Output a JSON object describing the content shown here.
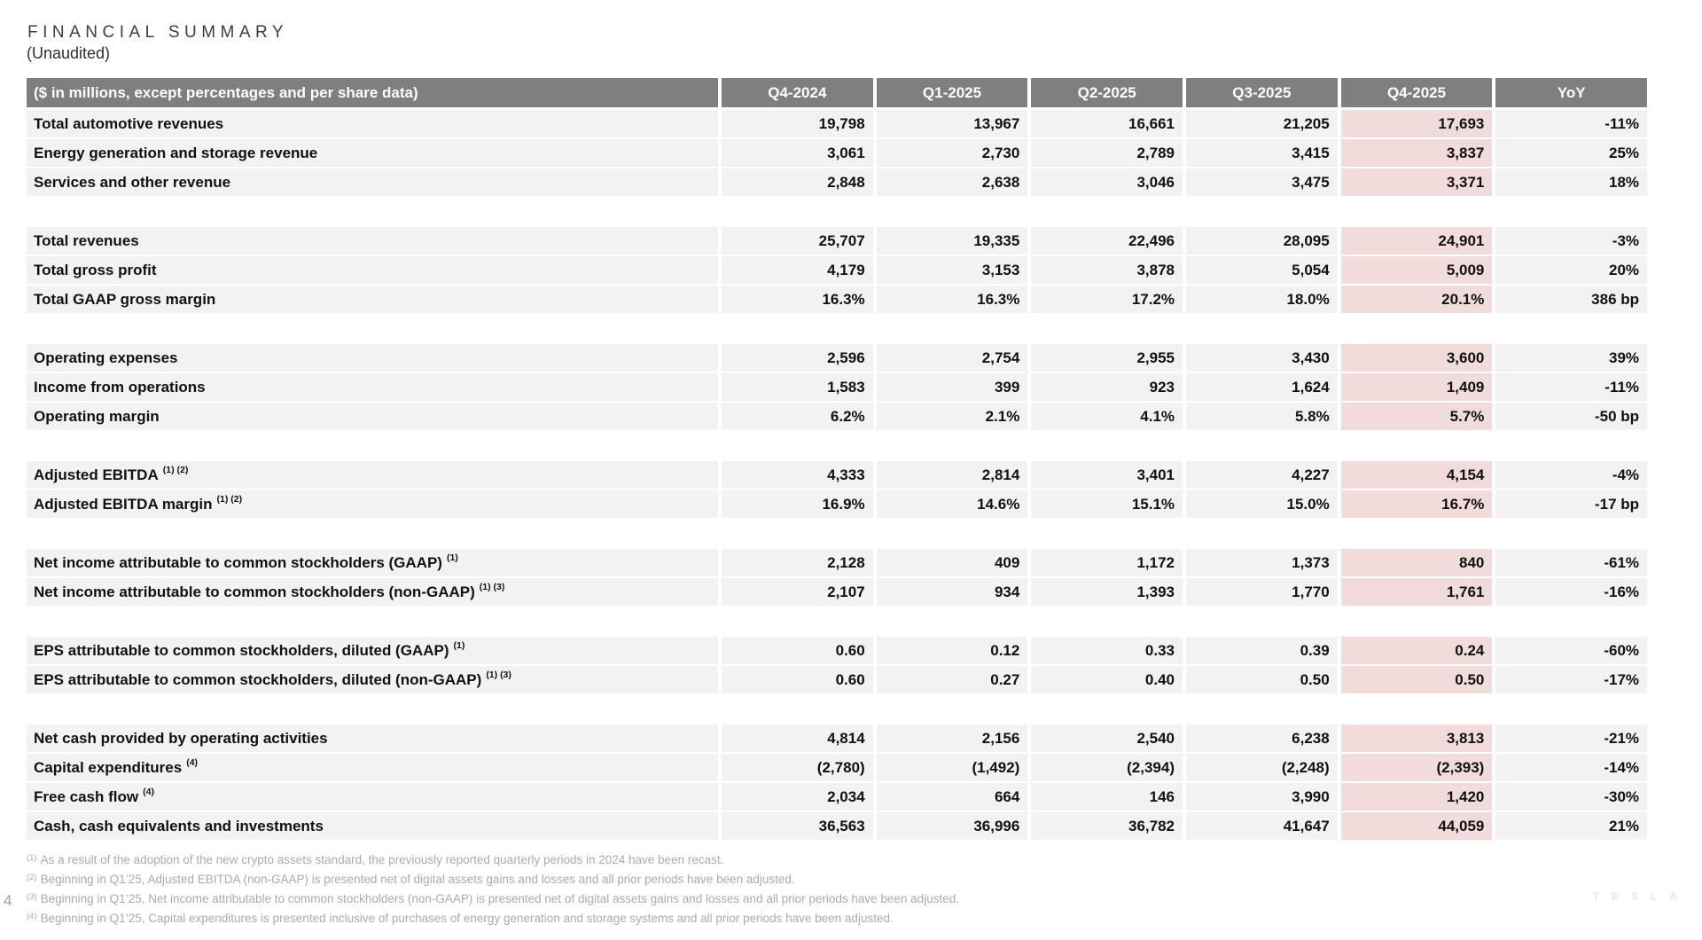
{
  "title": {
    "heading": "FINANCIAL SUMMARY",
    "subheading": "(Unaudited)"
  },
  "table": {
    "corner_label": "($ in millions, except percentages and per share data)",
    "columns": [
      "Q4-2024",
      "Q1-2025",
      "Q2-2025",
      "Q3-2025",
      "Q4-2025",
      "YoY"
    ],
    "highlight_column": "Q4-2025",
    "highlight_index": 4,
    "colors": {
      "header_bg": "#7f7f7f",
      "header_text": "#ffffff",
      "row_bg": "#f2f2f2",
      "highlight_bg": "#f2dcdb"
    },
    "sections": [
      {
        "rows": [
          {
            "label": "Total automotive revenues",
            "sup": "",
            "values": [
              "19,798",
              "13,967",
              "16,661",
              "21,205",
              "17,693",
              "-11%"
            ]
          },
          {
            "label": "Energy generation and storage revenue",
            "sup": "",
            "values": [
              "3,061",
              "2,730",
              "2,789",
              "3,415",
              "3,837",
              "25%"
            ]
          },
          {
            "label": "Services and other revenue",
            "sup": "",
            "values": [
              "2,848",
              "2,638",
              "3,046",
              "3,475",
              "3,371",
              "18%"
            ]
          }
        ]
      },
      {
        "rows": [
          {
            "label": "Total revenues",
            "sup": "",
            "values": [
              "25,707",
              "19,335",
              "22,496",
              "28,095",
              "24,901",
              "-3%"
            ]
          },
          {
            "label": "Total gross profit",
            "sup": "",
            "values": [
              "4,179",
              "3,153",
              "3,878",
              "5,054",
              "5,009",
              "20%"
            ]
          },
          {
            "label": "Total GAAP gross margin",
            "sup": "",
            "values": [
              "16.3%",
              "16.3%",
              "17.2%",
              "18.0%",
              "20.1%",
              "386 bp"
            ]
          }
        ]
      },
      {
        "rows": [
          {
            "label": "Operating expenses",
            "sup": "",
            "values": [
              "2,596",
              "2,754",
              "2,955",
              "3,430",
              "3,600",
              "39%"
            ]
          },
          {
            "label": "Income from operations",
            "sup": "",
            "values": [
              "1,583",
              "399",
              "923",
              "1,624",
              "1,409",
              "-11%"
            ]
          },
          {
            "label": "Operating margin",
            "sup": "",
            "values": [
              "6.2%",
              "2.1%",
              "4.1%",
              "5.8%",
              "5.7%",
              "-50 bp"
            ]
          }
        ]
      },
      {
        "rows": [
          {
            "label": "Adjusted EBITDA",
            "sup": "(1) (2)",
            "values": [
              "4,333",
              "2,814",
              "3,401",
              "4,227",
              "4,154",
              "-4%"
            ]
          },
          {
            "label": "Adjusted EBITDA margin",
            "sup": "(1) (2)",
            "values": [
              "16.9%",
              "14.6%",
              "15.1%",
              "15.0%",
              "16.7%",
              "-17 bp"
            ]
          }
        ]
      },
      {
        "rows": [
          {
            "label": "Net income attributable to common stockholders (GAAP)",
            "sup": "(1)",
            "values": [
              "2,128",
              "409",
              "1,172",
              "1,373",
              "840",
              "-61%"
            ]
          },
          {
            "label": "Net income attributable to common stockholders (non-GAAP)",
            "sup": "(1) (3)",
            "values": [
              "2,107",
              "934",
              "1,393",
              "1,770",
              "1,761",
              "-16%"
            ]
          }
        ]
      },
      {
        "rows": [
          {
            "label": "EPS attributable to common stockholders, diluted (GAAP)",
            "sup": "(1)",
            "values": [
              "0.60",
              "0.12",
              "0.33",
              "0.39",
              "0.24",
              "-60%"
            ]
          },
          {
            "label": "EPS attributable to common stockholders, diluted (non-GAAP)",
            "sup": "(1) (3)",
            "values": [
              "0.60",
              "0.27",
              "0.40",
              "0.50",
              "0.50",
              "-17%"
            ]
          }
        ]
      },
      {
        "rows": [
          {
            "label": "Net cash provided by operating activities",
            "sup": "",
            "values": [
              "4,814",
              "2,156",
              "2,540",
              "6,238",
              "3,813",
              "-21%"
            ]
          },
          {
            "label": "Capital expenditures",
            "sup": "(4)",
            "values": [
              "(2,780)",
              "(1,492)",
              "(2,394)",
              "(2,248)",
              "(2,393)",
              "-14%"
            ]
          },
          {
            "label": "Free cash flow",
            "sup": "(4)",
            "values": [
              "2,034",
              "664",
              "146",
              "3,990",
              "1,420",
              "-30%"
            ]
          },
          {
            "label": "Cash, cash equivalents and investments",
            "sup": "",
            "values": [
              "36,563",
              "36,996",
              "36,782",
              "41,647",
              "44,059",
              "21%"
            ]
          }
        ]
      }
    ]
  },
  "footnotes": [
    {
      "marker": "(1)",
      "text": "As a result of the adoption of the new crypto assets standard, the previously reported quarterly periods in 2024 have been recast."
    },
    {
      "marker": "(2)",
      "text": "Beginning in Q1’25, Adjusted EBITDA (non-GAAP) is presented net of digital assets gains and losses and all prior periods have been adjusted."
    },
    {
      "marker": "(3)",
      "text": "Beginning in Q1’25, Net income attributable to common stockholders (non-GAAP) is presented net of digital assets gains and losses and all prior periods have been adjusted."
    },
    {
      "marker": "(4)",
      "text": "Beginning in Q1’25, Capital expenditures is presented inclusive of purchases of energy generation and storage systems and all prior periods have been adjusted."
    }
  ],
  "page_number": "4",
  "watermark": "TESLA"
}
